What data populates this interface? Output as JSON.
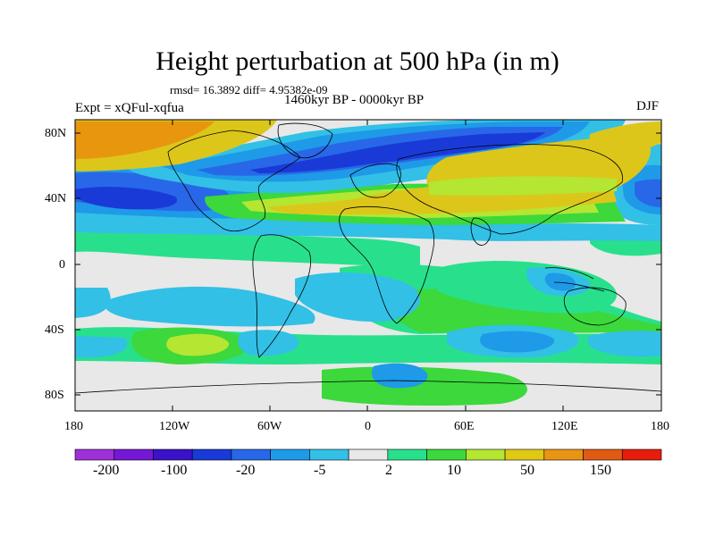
{
  "title": "Height perturbation at 500 hPa (in m)",
  "stats": "rmsd= 16.3892 diff= 4.95382e-09",
  "experiment": "Expt = xQFul-xqfua",
  "period": "1460kyr BP - 0000kyr BP",
  "season": "DJF",
  "lat_labels": [
    "80N",
    "40N",
    "0",
    "40S",
    "80S"
  ],
  "lon_labels": [
    "180",
    "120W",
    "60W",
    "0",
    "60E",
    "120E",
    "180"
  ],
  "colorbar": {
    "colors": [
      "#9e30d8",
      "#7418d6",
      "#3a12c8",
      "#1a3ad8",
      "#2868e8",
      "#1e9ae8",
      "#32c0e6",
      "#e8e8e8",
      "#28e08c",
      "#3cd83c",
      "#b4e632",
      "#e0c814",
      "#e89414",
      "#e05a14",
      "#e81c0c"
    ],
    "tick_labels": [
      "-200",
      "-100",
      "-20",
      "-5",
      "2",
      "10",
      "50",
      "150"
    ]
  },
  "palette": {
    "neutral": "#e8e8e8",
    "orange": "#e8960e",
    "yellow": "#dcc61a",
    "lime": "#b4e632",
    "green": "#3cd83c",
    "mint": "#28e08c",
    "cyan": "#32c0e6",
    "lightblue": "#1e9ae8",
    "blue": "#2868e8",
    "darkblue": "#1a3ad8"
  }
}
